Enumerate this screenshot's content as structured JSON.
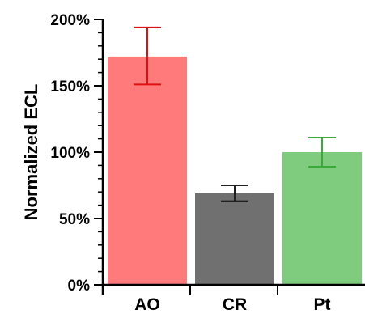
{
  "chart_data": {
    "type": "bar",
    "title": "",
    "xlabel": "",
    "ylabel": "Normalized ECL",
    "categories": [
      "AO",
      "CR",
      "Pt"
    ],
    "values": [
      172,
      69,
      100
    ],
    "error": [
      [
        151,
        194
      ],
      [
        63,
        75
      ],
      [
        89,
        111
      ]
    ],
    "bar_colors": [
      "#ff7b7b",
      "#707070",
      "#7fcc7f"
    ],
    "error_colors": [
      "#e01010",
      "#202020",
      "#3aaa3a"
    ],
    "ylim": [
      0,
      200
    ],
    "yticks": [
      0,
      50,
      100,
      150,
      200
    ],
    "ytick_labels": [
      "0%",
      "50%",
      "100%",
      "150%",
      "200%"
    ],
    "minor_ytick_step": 10,
    "grid": false,
    "legend": "none"
  }
}
